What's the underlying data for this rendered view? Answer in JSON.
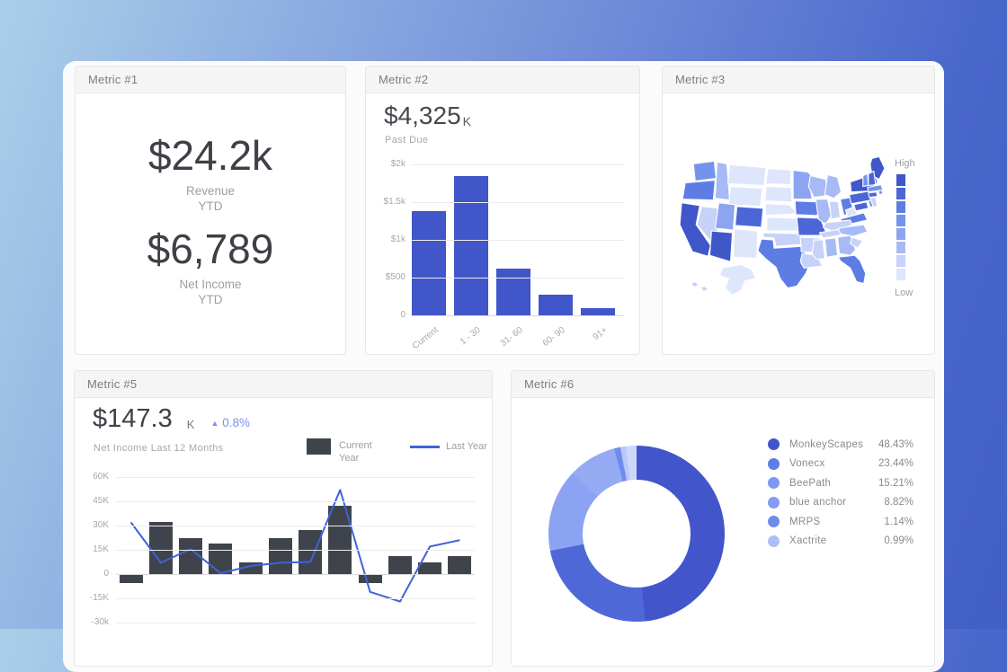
{
  "cards": {
    "metric1": {
      "title": "Metric #1",
      "value1": "$24.2k",
      "label1_line1": "Revenue",
      "label1_line2": "YTD",
      "value2": "$6,789",
      "label2_line1": "Net Income",
      "label2_line2": "YTD"
    },
    "metric2": {
      "title": "Metric #2",
      "headline": "$4,325",
      "headline_unit": "K",
      "subtitle": "Past Due"
    },
    "metric3": {
      "title": "Metric #3"
    },
    "metric5": {
      "title": "Metric #5",
      "headline": "$147.3",
      "headline_unit": "K",
      "delta_arrow": "▲",
      "delta": "0.8%",
      "subtitle": "Net Income Last 12 Months"
    },
    "metric6": {
      "title": "Metric #6"
    }
  },
  "chart_data": [
    {
      "id": "past_due_aging",
      "type": "bar",
      "title": "Past Due",
      "headline": "$4,325K",
      "categories": [
        "Current",
        "1 - 30",
        "31- 60",
        "60- 90",
        "91+"
      ],
      "values": [
        1380,
        1840,
        620,
        280,
        100
      ],
      "ytick_labels": [
        "$2k",
        "$1.5k",
        "$1k",
        "$500",
        "0"
      ],
      "ylim": [
        0,
        2000
      ],
      "grid": true,
      "bar_color": "#4156c8"
    },
    {
      "id": "net_income_12_months",
      "type": "bar+line",
      "title": "Net Income Last 12 Months",
      "headline": "$147.3K",
      "delta": "+0.8%",
      "x": [
        1,
        2,
        3,
        4,
        5,
        6,
        7,
        8,
        9,
        10,
        11,
        12
      ],
      "series": [
        {
          "name": "Current Year",
          "type": "bar",
          "color": "#3f444c",
          "values": [
            -5,
            32,
            22,
            19,
            7,
            22,
            27,
            42,
            -5,
            11,
            7,
            11
          ]
        },
        {
          "name": "Last Year",
          "type": "line",
          "color": "#3f62d6",
          "values": [
            32,
            7,
            15.5,
            0.5,
            5,
            7,
            7.5,
            52,
            -11,
            -17,
            17,
            21
          ]
        }
      ],
      "unit": "K",
      "ytick_labels": [
        "60K",
        "45K",
        "30K",
        "15K",
        "0",
        "-15K",
        "-30k"
      ],
      "ylim": [
        -30,
        60
      ],
      "grid": true,
      "legend_position": "top-right"
    },
    {
      "id": "share_donut",
      "type": "pie",
      "slices": [
        {
          "name": "MonkeyScapes",
          "value": 48.43,
          "label": "48.43%",
          "color": "#4355cb",
          "dot": "#4355cb"
        },
        {
          "name": "Vonecx",
          "value": 23.44,
          "label": "23.44%",
          "color": "#4f68d8",
          "dot": "#5f7de9"
        },
        {
          "name": "BeePath",
          "value": 15.21,
          "label": "15.21%",
          "color": "#8ba3f2",
          "dot": "#7e99f0"
        },
        {
          "name": "blue anchor",
          "value": 8.82,
          "label": "8.82%",
          "color": "#94abf3",
          "dot": "#849cf1"
        },
        {
          "name": "MRPS",
          "value": 1.14,
          "label": "1.14%",
          "color": "#6e8cee",
          "dot": "#6e8cee"
        },
        {
          "name": "Xactrite",
          "value": 0.99,
          "label": "0.99%",
          "color": "#b9c8f7",
          "dot": "#aebff6"
        }
      ],
      "remainder_value": 1.97,
      "remainder_color": "#ccd7fa",
      "legend_position": "right",
      "donut": true
    },
    {
      "id": "us_choropleth",
      "type": "heatmap",
      "legend_high": "High",
      "legend_low": "Low",
      "palette": [
        "#dee6fb",
        "#c6d2f8",
        "#a7baf5",
        "#8da5f1",
        "#7493ed",
        "#5d7de5",
        "#4b66d7",
        "#3f57c8"
      ],
      "states": {
        "WA": 5,
        "OR": 6,
        "CA": 8,
        "NV": 2,
        "ID": 3,
        "MT": 1,
        "WY": 1,
        "UT": 4,
        "CO": 7,
        "AZ": 8,
        "NM": 1,
        "ND": 1,
        "SD": 1,
        "NE": 1,
        "KS": 1,
        "OK": 2,
        "TX": 6,
        "MN": 4,
        "IA": 6,
        "MO": 7,
        "AR": 2,
        "LA": 2,
        "WI": 3,
        "IL": 3,
        "MI": 3,
        "IN": 2,
        "OH": 6,
        "KY": 2,
        "TN": 2,
        "MS": 2,
        "AL": 3,
        "GA": 3,
        "SC": 2,
        "NC": 3,
        "VA": 6,
        "WV": 1,
        "FL": 6,
        "PA": 7,
        "NY": 8,
        "ME": 8,
        "VT": 5,
        "NH": 7,
        "MA": 5,
        "RI": 5,
        "CT": 7,
        "NJ": 2,
        "MD": 7,
        "DE": 5,
        "AK": 1,
        "HI": 2
      }
    }
  ]
}
